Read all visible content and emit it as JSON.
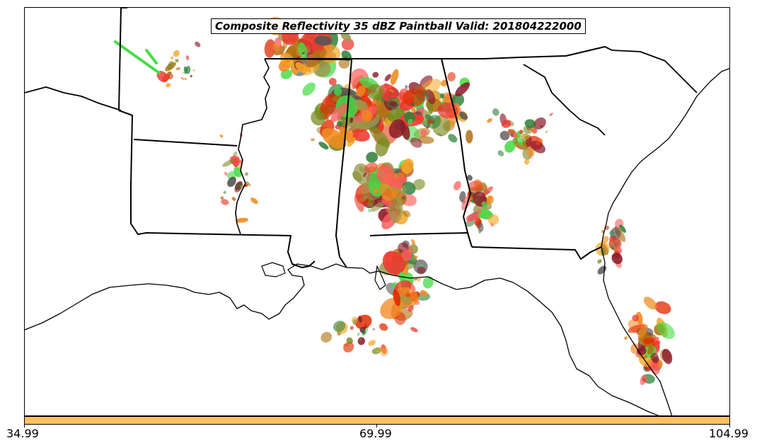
{
  "title": "Composite Reflectivity 35 dBZ Paintball Valid: 201804222000",
  "colorbar": {
    "color": "#ffc060",
    "ticks": [
      "34.99",
      "69.99",
      "104.99"
    ]
  },
  "map": {
    "background": "#ffffff",
    "boundary_color": "#000000",
    "paintball_palette": [
      "#e02a00",
      "#f08a20",
      "#f5a623",
      "#ee3a30",
      "#8a1a2a",
      "#7a8a20",
      "#2f7f3a",
      "#48dc48",
      "#9a9a50",
      "#555555",
      "#b07010",
      "#ff5a5a"
    ]
  }
}
